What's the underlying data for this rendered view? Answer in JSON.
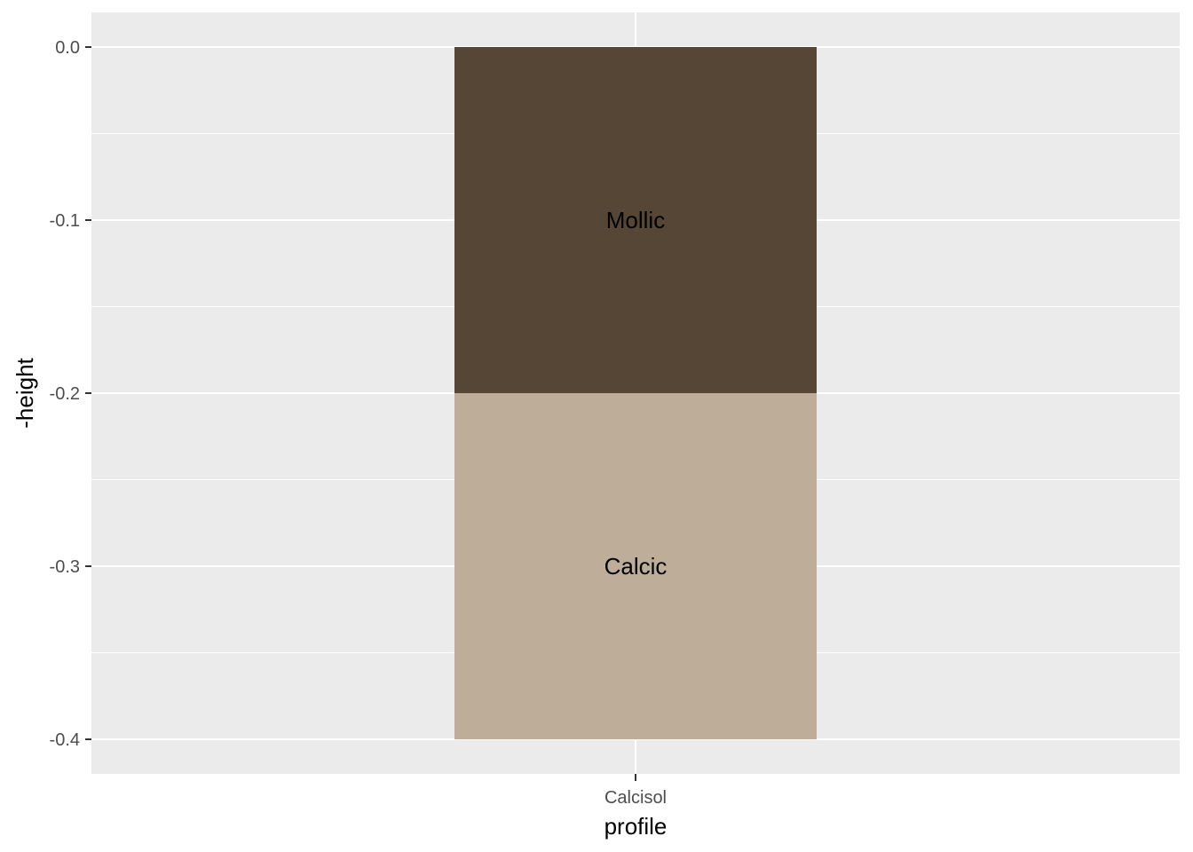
{
  "chart_data": {
    "type": "bar",
    "stacked": true,
    "categories": [
      "Calcisol"
    ],
    "series": [
      {
        "name": "Mollic",
        "start": 0.0,
        "end": -0.2,
        "color": "#554635"
      },
      {
        "name": "Calcic",
        "start": -0.2,
        "end": -0.4,
        "color": "#BEAD98"
      }
    ],
    "segment_labels": [
      "Mollic",
      "Calcic"
    ],
    "xlabel": "profile",
    "ylabel": "-height",
    "ylim": [
      -0.42,
      0.02
    ],
    "yticks": [
      0.0,
      -0.1,
      -0.2,
      -0.3,
      -0.4
    ],
    "ytick_labels": [
      "0.0",
      "-0.1",
      "-0.2",
      "-0.3",
      "-0.4"
    ],
    "grid": true,
    "panel_background": "#EBEBEB",
    "grid_color": "#FFFFFF"
  }
}
